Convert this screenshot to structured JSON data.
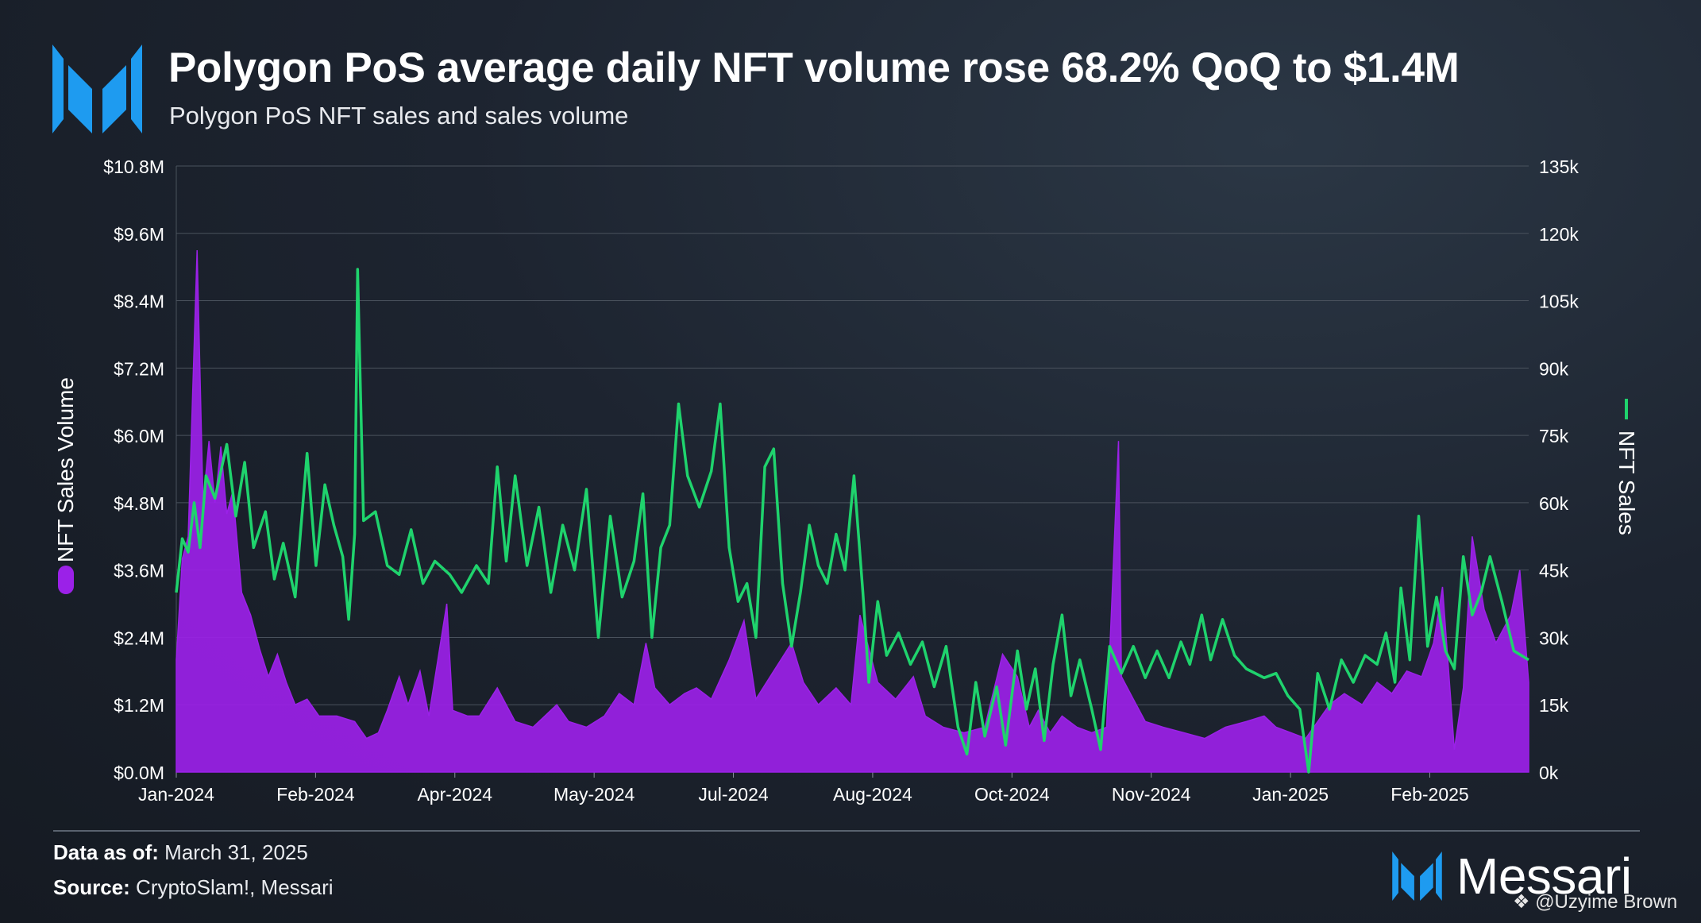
{
  "header": {
    "title": "Polygon PoS average daily NFT volume rose 68.2% QoQ to $1.4M",
    "subtitle": "Polygon PoS NFT sales and sales volume"
  },
  "footer": {
    "data_as_of_label": "Data as of:",
    "data_as_of_value": "March 31, 2025",
    "source_label": "Source:",
    "source_value": "CryptoSlam!, Messari",
    "brand": "Messari",
    "watermark": "@Uzyime Brown"
  },
  "colors": {
    "volume": "#9b21e8",
    "sales": "#1fd36d",
    "brand_blue": "#1e9bf0"
  },
  "chart_data": {
    "type": "area",
    "x_ticks": [
      "Jan-2024",
      "Feb-2024",
      "Apr-2024",
      "May-2024",
      "Jul-2024",
      "Aug-2024",
      "Oct-2024",
      "Nov-2024",
      "Jan-2025",
      "Feb-2025"
    ],
    "x_start": "2024-01-01",
    "x_end": "2025-03-31",
    "left_axis": {
      "label": "NFT Sales Volume",
      "ticks": [
        "$0.0M",
        "$1.2M",
        "$2.4M",
        "$3.6M",
        "$4.8M",
        "$6.0M",
        "$7.2M",
        "$8.4M",
        "$9.6M",
        "$10.8M"
      ],
      "range": [
        0,
        10.8
      ],
      "unit": "$M"
    },
    "right_axis": {
      "label": "NFT Sales",
      "ticks": [
        "0k",
        "15k",
        "30k",
        "45k",
        "60k",
        "75k",
        "90k",
        "105k",
        "120k",
        "135k"
      ],
      "range": [
        0,
        135
      ],
      "unit": "k"
    },
    "grid": true,
    "series": [
      {
        "name": "NFT Sales Volume",
        "type": "area",
        "axis": "left",
        "unit": "$M",
        "anchors": [
          [
            "2024-01-01",
            2.0
          ],
          [
            "2024-01-03",
            3.8
          ],
          [
            "2024-01-05",
            4.2
          ],
          [
            "2024-01-08",
            9.3
          ],
          [
            "2024-01-10",
            4.8
          ],
          [
            "2024-01-12",
            5.9
          ],
          [
            "2024-01-14",
            4.8
          ],
          [
            "2024-01-16",
            5.8
          ],
          [
            "2024-01-18",
            4.6
          ],
          [
            "2024-01-20",
            5.0
          ],
          [
            "2024-01-23",
            3.2
          ],
          [
            "2024-01-26",
            2.8
          ],
          [
            "2024-01-29",
            2.2
          ],
          [
            "2024-02-01",
            1.7
          ],
          [
            "2024-02-04",
            2.1
          ],
          [
            "2024-02-07",
            1.6
          ],
          [
            "2024-02-10",
            1.2
          ],
          [
            "2024-02-14",
            1.3
          ],
          [
            "2024-02-18",
            1.0
          ],
          [
            "2024-02-24",
            1.0
          ],
          [
            "2024-03-01",
            0.9
          ],
          [
            "2024-03-05",
            0.6
          ],
          [
            "2024-03-09",
            0.7
          ],
          [
            "2024-03-12",
            1.1
          ],
          [
            "2024-03-16",
            1.7
          ],
          [
            "2024-03-19",
            1.2
          ],
          [
            "2024-03-23",
            1.8
          ],
          [
            "2024-03-26",
            1.0
          ],
          [
            "2024-04-01",
            3.0
          ],
          [
            "2024-04-03",
            1.1
          ],
          [
            "2024-04-08",
            1.0
          ],
          [
            "2024-04-12",
            1.0
          ],
          [
            "2024-04-18",
            1.5
          ],
          [
            "2024-04-24",
            0.9
          ],
          [
            "2024-04-30",
            0.8
          ],
          [
            "2024-05-04",
            1.0
          ],
          [
            "2024-05-08",
            1.2
          ],
          [
            "2024-05-12",
            0.9
          ],
          [
            "2024-05-18",
            0.8
          ],
          [
            "2024-05-24",
            1.0
          ],
          [
            "2024-05-29",
            1.4
          ],
          [
            "2024-06-03",
            1.2
          ],
          [
            "2024-06-07",
            2.3
          ],
          [
            "2024-06-10",
            1.5
          ],
          [
            "2024-06-15",
            1.2
          ],
          [
            "2024-06-20",
            1.4
          ],
          [
            "2024-06-24",
            1.5
          ],
          [
            "2024-06-29",
            1.3
          ],
          [
            "2024-07-05",
            2.0
          ],
          [
            "2024-07-10",
            2.7
          ],
          [
            "2024-07-14",
            1.3
          ],
          [
            "2024-07-20",
            1.8
          ],
          [
            "2024-07-26",
            2.3
          ],
          [
            "2024-07-30",
            1.6
          ],
          [
            "2024-08-04",
            1.2
          ],
          [
            "2024-08-10",
            1.5
          ],
          [
            "2024-08-15",
            1.2
          ],
          [
            "2024-08-18",
            2.8
          ],
          [
            "2024-08-24",
            1.6
          ],
          [
            "2024-08-30",
            1.3
          ],
          [
            "2024-09-05",
            1.7
          ],
          [
            "2024-09-09",
            1.0
          ],
          [
            "2024-09-15",
            0.8
          ],
          [
            "2024-09-22",
            0.7
          ],
          [
            "2024-09-29",
            0.8
          ],
          [
            "2024-10-05",
            2.1
          ],
          [
            "2024-10-10",
            1.7
          ],
          [
            "2024-10-14",
            0.8
          ],
          [
            "2024-10-17",
            1.1
          ],
          [
            "2024-10-21",
            0.7
          ],
          [
            "2024-10-25",
            1.0
          ],
          [
            "2024-10-30",
            0.8
          ],
          [
            "2024-11-04",
            0.7
          ],
          [
            "2024-11-09",
            0.8
          ],
          [
            "2024-11-13",
            5.9
          ],
          [
            "2024-11-14",
            1.7
          ],
          [
            "2024-11-18",
            1.3
          ],
          [
            "2024-11-22",
            0.9
          ],
          [
            "2024-11-28",
            0.8
          ],
          [
            "2024-12-05",
            0.7
          ],
          [
            "2024-12-12",
            0.6
          ],
          [
            "2024-12-19",
            0.8
          ],
          [
            "2024-12-26",
            0.9
          ],
          [
            "2025-01-01",
            1.0
          ],
          [
            "2025-01-05",
            0.8
          ],
          [
            "2025-01-10",
            0.7
          ],
          [
            "2025-01-15",
            0.6
          ],
          [
            "2025-01-19",
            0.9
          ],
          [
            "2025-01-23",
            1.2
          ],
          [
            "2025-01-28",
            1.4
          ],
          [
            "2025-02-03",
            1.2
          ],
          [
            "2025-02-08",
            1.6
          ],
          [
            "2025-02-13",
            1.4
          ],
          [
            "2025-02-18",
            1.8
          ],
          [
            "2025-02-23",
            1.7
          ],
          [
            "2025-02-27",
            2.3
          ],
          [
            "2025-03-02",
            3.3
          ],
          [
            "2025-03-06",
            0.4
          ],
          [
            "2025-03-09",
            1.5
          ],
          [
            "2025-03-12",
            4.2
          ],
          [
            "2025-03-16",
            2.9
          ],
          [
            "2025-03-20",
            2.3
          ],
          [
            "2025-03-25",
            2.8
          ],
          [
            "2025-03-28",
            3.6
          ],
          [
            "2025-03-31",
            1.6
          ]
        ]
      },
      {
        "name": "NFT Sales",
        "type": "line",
        "axis": "right",
        "unit": "k",
        "anchors": [
          [
            "2024-01-01",
            40
          ],
          [
            "2024-01-03",
            52
          ],
          [
            "2024-01-05",
            49
          ],
          [
            "2024-01-07",
            60
          ],
          [
            "2024-01-09",
            50
          ],
          [
            "2024-01-11",
            66
          ],
          [
            "2024-01-14",
            61
          ],
          [
            "2024-01-18",
            73
          ],
          [
            "2024-01-21",
            57
          ],
          [
            "2024-01-24",
            69
          ],
          [
            "2024-01-27",
            50
          ],
          [
            "2024-01-31",
            58
          ],
          [
            "2024-02-03",
            43
          ],
          [
            "2024-02-06",
            51
          ],
          [
            "2024-02-10",
            39
          ],
          [
            "2024-02-14",
            71
          ],
          [
            "2024-02-17",
            46
          ],
          [
            "2024-02-20",
            64
          ],
          [
            "2024-02-23",
            55
          ],
          [
            "2024-02-26",
            48
          ],
          [
            "2024-02-28",
            34
          ],
          [
            "2024-03-01",
            53
          ],
          [
            "2024-03-02",
            112
          ],
          [
            "2024-03-04",
            56
          ],
          [
            "2024-03-08",
            58
          ],
          [
            "2024-03-12",
            46
          ],
          [
            "2024-03-16",
            44
          ],
          [
            "2024-03-20",
            54
          ],
          [
            "2024-03-24",
            42
          ],
          [
            "2024-03-28",
            47
          ],
          [
            "2024-04-02",
            44
          ],
          [
            "2024-04-06",
            40
          ],
          [
            "2024-04-11",
            46
          ],
          [
            "2024-04-15",
            42
          ],
          [
            "2024-04-18",
            68
          ],
          [
            "2024-04-21",
            47
          ],
          [
            "2024-04-24",
            66
          ],
          [
            "2024-04-28",
            46
          ],
          [
            "2024-05-02",
            59
          ],
          [
            "2024-05-06",
            40
          ],
          [
            "2024-05-10",
            55
          ],
          [
            "2024-05-14",
            45
          ],
          [
            "2024-05-18",
            63
          ],
          [
            "2024-05-22",
            30
          ],
          [
            "2024-05-26",
            57
          ],
          [
            "2024-05-30",
            39
          ],
          [
            "2024-06-03",
            47
          ],
          [
            "2024-06-06",
            62
          ],
          [
            "2024-06-09",
            30
          ],
          [
            "2024-06-12",
            50
          ],
          [
            "2024-06-15",
            55
          ],
          [
            "2024-06-18",
            82
          ],
          [
            "2024-06-21",
            66
          ],
          [
            "2024-06-25",
            59
          ],
          [
            "2024-06-29",
            67
          ],
          [
            "2024-07-02",
            82
          ],
          [
            "2024-07-05",
            50
          ],
          [
            "2024-07-08",
            38
          ],
          [
            "2024-07-11",
            42
          ],
          [
            "2024-07-14",
            30
          ],
          [
            "2024-07-17",
            68
          ],
          [
            "2024-07-20",
            72
          ],
          [
            "2024-07-23",
            42
          ],
          [
            "2024-07-26",
            28
          ],
          [
            "2024-07-29",
            40
          ],
          [
            "2024-08-01",
            55
          ],
          [
            "2024-08-04",
            46
          ],
          [
            "2024-08-07",
            42
          ],
          [
            "2024-08-10",
            53
          ],
          [
            "2024-08-13",
            45
          ],
          [
            "2024-08-16",
            66
          ],
          [
            "2024-08-19",
            40
          ],
          [
            "2024-08-21",
            20
          ],
          [
            "2024-08-24",
            38
          ],
          [
            "2024-08-27",
            26
          ],
          [
            "2024-08-31",
            31
          ],
          [
            "2024-09-04",
            24
          ],
          [
            "2024-09-08",
            29
          ],
          [
            "2024-09-12",
            19
          ],
          [
            "2024-09-16",
            28
          ],
          [
            "2024-09-20",
            10
          ],
          [
            "2024-09-23",
            4
          ],
          [
            "2024-09-26",
            20
          ],
          [
            "2024-09-29",
            8
          ],
          [
            "2024-10-03",
            19
          ],
          [
            "2024-10-06",
            6
          ],
          [
            "2024-10-10",
            27
          ],
          [
            "2024-10-13",
            14
          ],
          [
            "2024-10-16",
            23
          ],
          [
            "2024-10-19",
            7
          ],
          [
            "2024-10-22",
            24
          ],
          [
            "2024-10-25",
            35
          ],
          [
            "2024-10-28",
            17
          ],
          [
            "2024-10-31",
            25
          ],
          [
            "2024-11-04",
            14
          ],
          [
            "2024-11-07",
            5
          ],
          [
            "2024-11-10",
            28
          ],
          [
            "2024-11-14",
            22
          ],
          [
            "2024-11-18",
            28
          ],
          [
            "2024-11-22",
            21
          ],
          [
            "2024-11-26",
            27
          ],
          [
            "2024-11-30",
            21
          ],
          [
            "2024-12-04",
            29
          ],
          [
            "2024-12-07",
            24
          ],
          [
            "2024-12-11",
            35
          ],
          [
            "2024-12-14",
            25
          ],
          [
            "2024-12-18",
            34
          ],
          [
            "2024-12-22",
            26
          ],
          [
            "2024-12-26",
            23
          ],
          [
            "2025-01-01",
            21
          ],
          [
            "2025-01-05",
            22
          ],
          [
            "2025-01-09",
            17
          ],
          [
            "2025-01-13",
            14
          ],
          [
            "2025-01-16",
            0
          ],
          [
            "2025-01-19",
            22
          ],
          [
            "2025-01-23",
            14
          ],
          [
            "2025-01-27",
            25
          ],
          [
            "2025-01-31",
            20
          ],
          [
            "2025-02-04",
            26
          ],
          [
            "2025-02-08",
            24
          ],
          [
            "2025-02-11",
            31
          ],
          [
            "2025-02-14",
            20
          ],
          [
            "2025-02-16",
            41
          ],
          [
            "2025-02-19",
            25
          ],
          [
            "2025-02-22",
            57
          ],
          [
            "2025-02-25",
            28
          ],
          [
            "2025-02-28",
            39
          ],
          [
            "2025-03-03",
            27
          ],
          [
            "2025-03-06",
            23
          ],
          [
            "2025-03-09",
            48
          ],
          [
            "2025-03-12",
            35
          ],
          [
            "2025-03-15",
            40
          ],
          [
            "2025-03-18",
            48
          ],
          [
            "2025-03-22",
            38
          ],
          [
            "2025-03-26",
            27
          ],
          [
            "2025-03-31",
            25
          ]
        ]
      }
    ]
  }
}
